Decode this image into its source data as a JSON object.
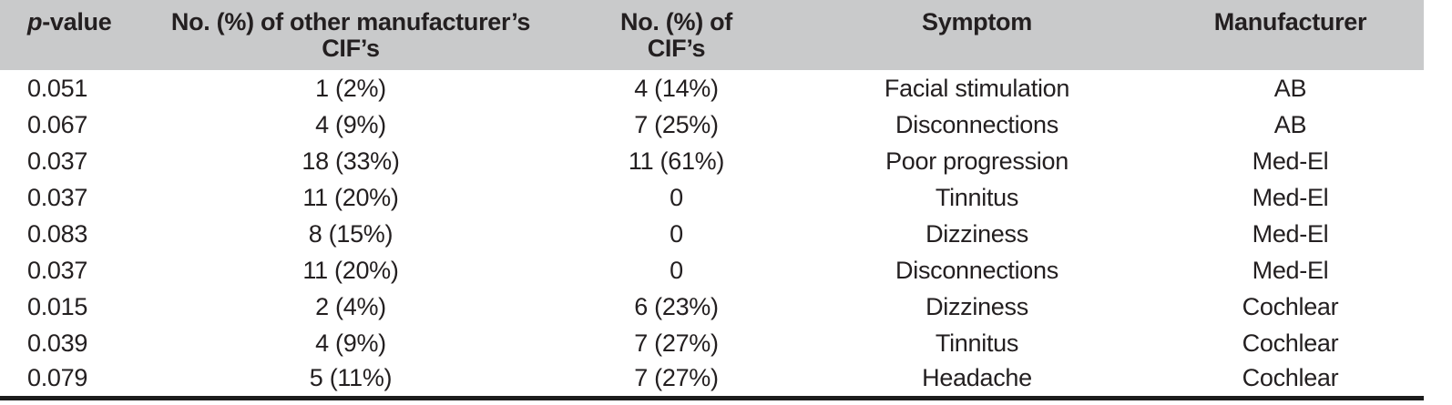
{
  "colors": {
    "header_bg": "#c9cacb",
    "text": "#231f20",
    "rule": "#1c1c1c"
  },
  "header": {
    "col1_italic": "p",
    "col1_rest": "-value",
    "col2_line1": "No. (%) of other manufacturer’s",
    "col2_line2": "CIF’s",
    "col3_line1": "No. (%) of",
    "col3_line2": "CIF’s",
    "col4": "Symptom",
    "col5": "Manufacturer"
  },
  "rows": [
    [
      "0.051",
      "1 (2%)",
      "4 (14%)",
      "Facial stimulation",
      "AB"
    ],
    [
      "0.067",
      "4 (9%)",
      "7 (25%)",
      "Disconnections",
      "AB"
    ],
    [
      "0.037",
      "18 (33%)",
      "11 (61%)",
      "Poor progression",
      "Med-El"
    ],
    [
      "0.037",
      "11 (20%)",
      "0",
      "Tinnitus",
      "Med-El"
    ],
    [
      "0.083",
      "8 (15%)",
      "0",
      "Dizziness",
      "Med-El"
    ],
    [
      "0.037",
      "11 (20%)",
      "0",
      "Disconnections",
      "Med-El"
    ],
    [
      "0.015",
      "2 (4%)",
      "6 (23%)",
      "Dizziness",
      "Cochlear"
    ],
    [
      "0.039",
      "4 (9%)",
      "7 (27%)",
      "Tinnitus",
      "Cochlear"
    ],
    [
      "0.079",
      "5 (11%)",
      "7 (27%)",
      "Headache",
      "Cochlear"
    ]
  ]
}
